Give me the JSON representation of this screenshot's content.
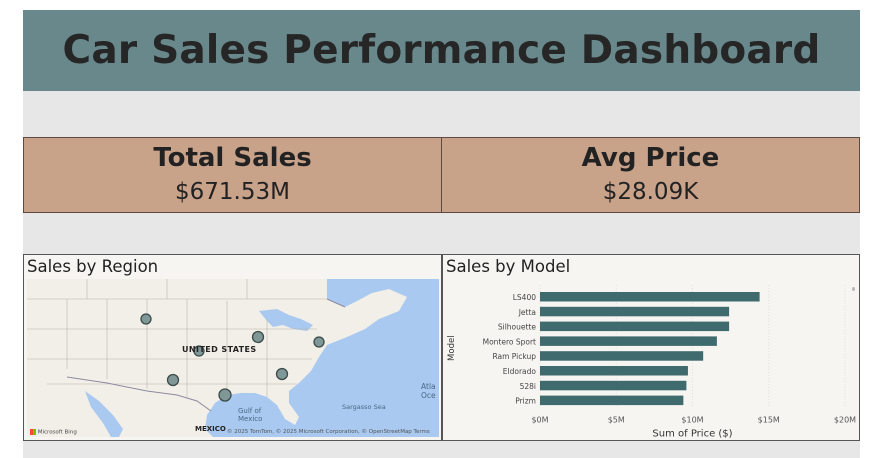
{
  "header": {
    "title": "Car Sales Performance Dashboard"
  },
  "kpis": [
    {
      "label": "Total Sales",
      "value": "$671.53M"
    },
    {
      "label": "Avg Price",
      "value": "$28.09K"
    }
  ],
  "map_panel": {
    "title": "Sales by Region",
    "labels": {
      "country": "UNITED STATES",
      "gulf": "Gulf of\nMexico",
      "gulf_line1": "Gulf of",
      "gulf_line2": "Mexico",
      "mexico": "MEXICO",
      "sargasso": "Sargasso Sea",
      "atlantic1": "Atla",
      "atlantic2": "Oce"
    },
    "provider": "Microsoft Bing",
    "attribution": "© 2025 TomTom, © 2025 Microsoft Corporation, © OpenStreetMap  Terms",
    "colors": {
      "water": "#a9c9f0",
      "land": "#f2efe8",
      "bubble": "#7f9796"
    }
  },
  "chart_data": {
    "type": "bar",
    "orientation": "horizontal",
    "title": "Sales by Model",
    "categories": [
      "LS400",
      "Jetta",
      "Silhouette",
      "Montero Sport",
      "Ram Pickup",
      "Eldorado",
      "528i",
      "Prizm"
    ],
    "values": [
      14.4,
      12.4,
      12.4,
      11.6,
      10.7,
      9.7,
      9.6,
      9.4
    ],
    "value_unit": "M",
    "xlabel": "Sum of Price ($)",
    "ylabel": "Model",
    "xlim": [
      0,
      20
    ],
    "xticks": [
      "$0M",
      "$5M",
      "$10M",
      "$15M",
      "$20M"
    ],
    "grid": true,
    "bar_color": "#3f6a6e"
  }
}
